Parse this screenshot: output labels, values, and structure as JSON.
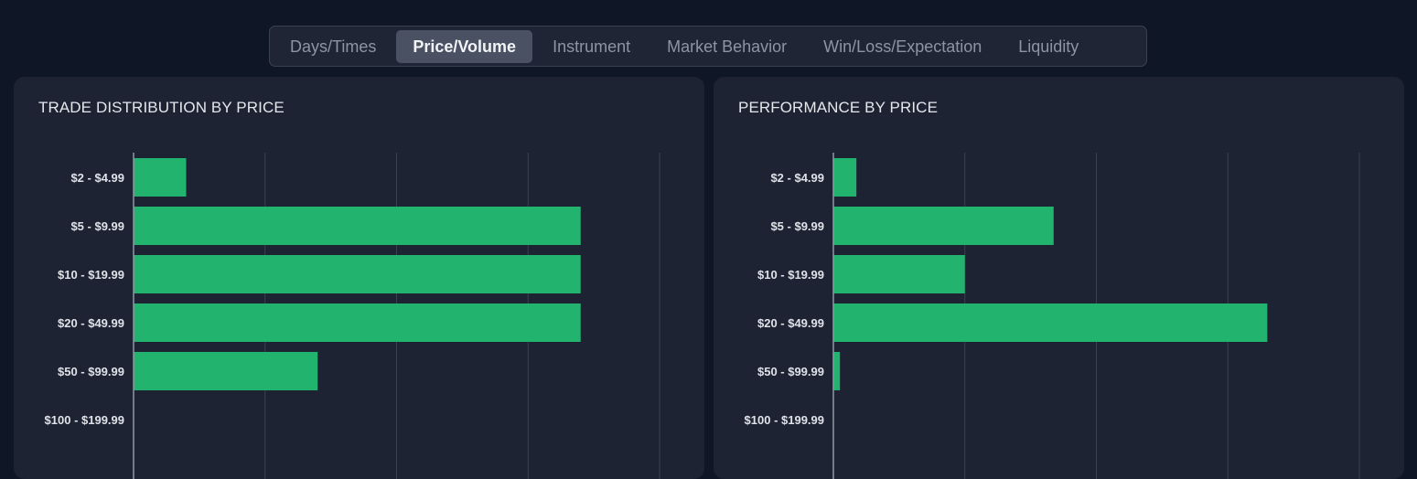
{
  "tabs": [
    {
      "label": "Days/Times",
      "active": false
    },
    {
      "label": "Price/Volume",
      "active": true
    },
    {
      "label": "Instrument",
      "active": false
    },
    {
      "label": "Market Behavior",
      "active": false
    },
    {
      "label": "Win/Loss/Expectation",
      "active": false
    },
    {
      "label": "Liquidity",
      "active": false
    }
  ],
  "colors": {
    "bar": "#22b36f",
    "grid": "#3a4153",
    "axis": "#8f97a6",
    "panel": "#1e2333"
  },
  "chart_data": [
    {
      "type": "bar",
      "orientation": "horizontal",
      "title": "TRADE DISTRIBUTION BY PRICE",
      "categories": [
        "$2 - $4.99",
        "$5 - $9.99",
        "$10 - $19.99",
        "$20 - $49.99",
        "$50 - $99.99",
        "$100 - $199.99"
      ],
      "values": [
        2,
        17,
        17,
        17,
        7,
        0
      ],
      "xlim": [
        0,
        20
      ],
      "grid": true
    },
    {
      "type": "bar",
      "orientation": "horizontal",
      "title": "PERFORMANCE BY PRICE",
      "categories": [
        "$2 - $4.99",
        "$5 - $9.99",
        "$10 - $19.99",
        "$20 - $49.99",
        "$50 - $99.99",
        "$100 - $199.99"
      ],
      "values": [
        175,
        1675,
        1000,
        3300,
        50,
        0
      ],
      "xlim": [
        0,
        4000
      ],
      "grid": true
    }
  ]
}
